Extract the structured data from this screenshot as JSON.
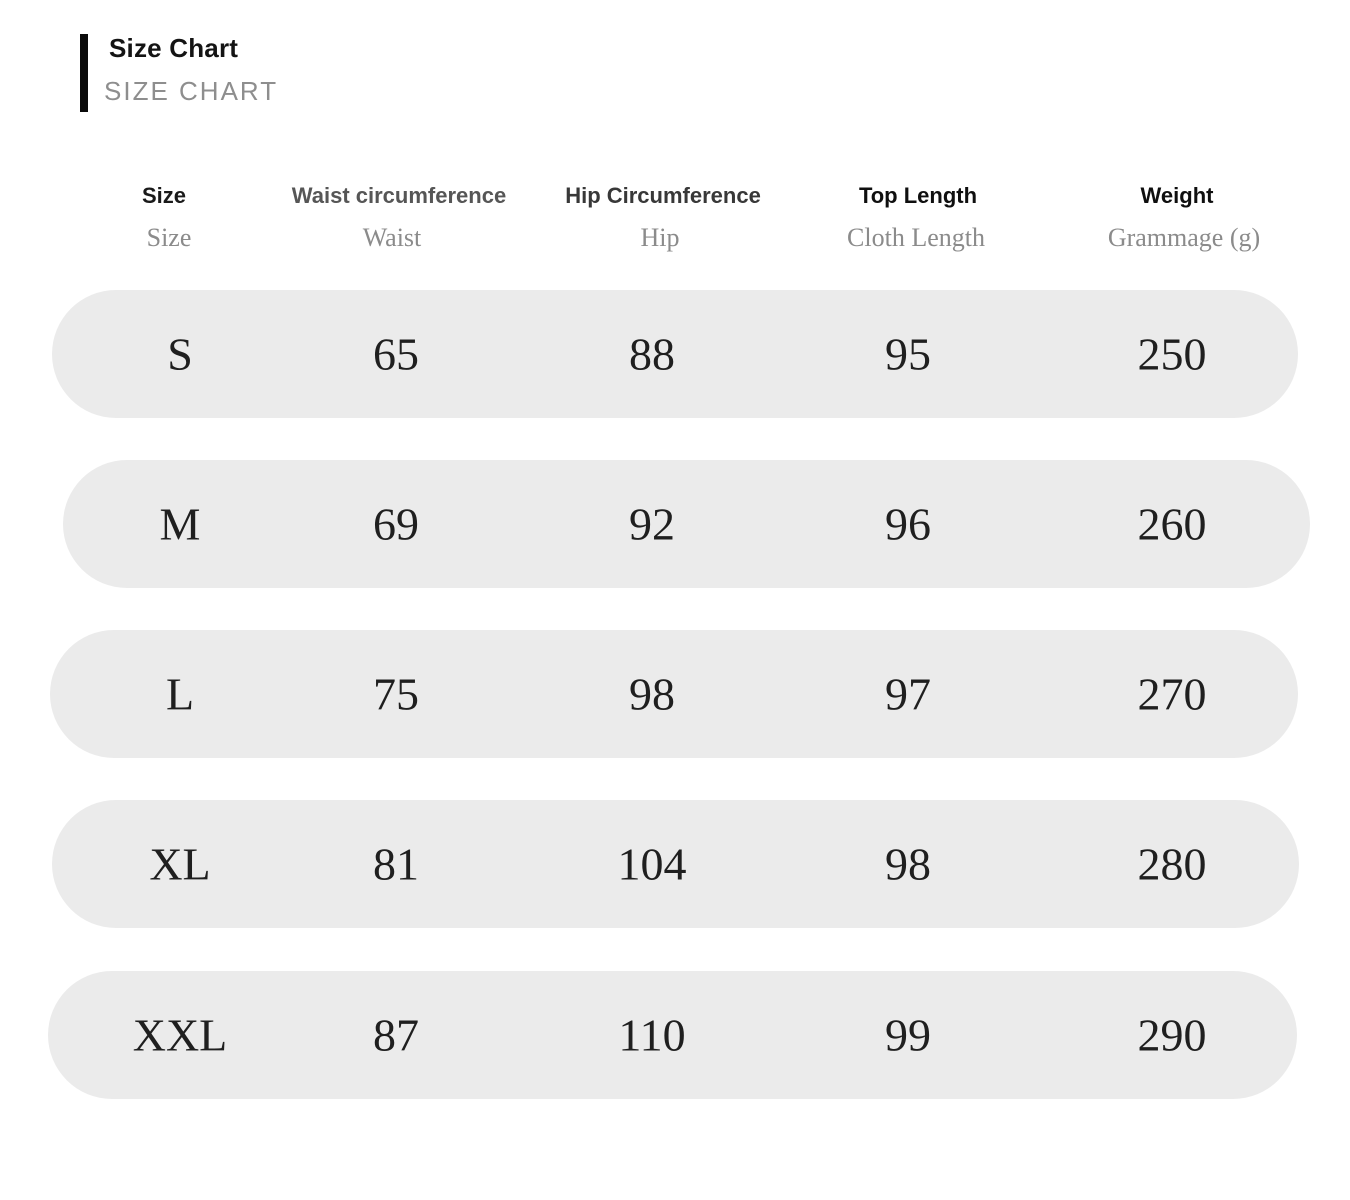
{
  "title": {
    "main": "Size Chart",
    "sub": "SIZE CHART"
  },
  "table": {
    "columns": [
      {
        "label": "Size",
        "sublabel": "Size"
      },
      {
        "label": "Waist circumference",
        "sublabel": "Waist"
      },
      {
        "label": "Hip Circumference",
        "sublabel": "Hip"
      },
      {
        "label": "Top Length",
        "sublabel": "Cloth Length"
      },
      {
        "label": "Weight",
        "sublabel": "Grammage (g)"
      }
    ],
    "rows": [
      {
        "size": "S",
        "waist": "65",
        "hip": "88",
        "length": "95",
        "weight": "250"
      },
      {
        "size": "M",
        "waist": "69",
        "hip": "92",
        "length": "96",
        "weight": "260"
      },
      {
        "size": "L",
        "waist": "75",
        "hip": "98",
        "length": "97",
        "weight": "270"
      },
      {
        "size": "XL",
        "waist": "81",
        "hip": "104",
        "length": "98",
        "weight": "280"
      },
      {
        "size": "XXL",
        "waist": "87",
        "hip": "110",
        "length": "99",
        "weight": "290"
      }
    ]
  },
  "colors": {
    "row_pill": "#ebebeb",
    "accent_bar": "#0a0a0a",
    "muted_text": "#8b8b8b"
  },
  "chart_data": {
    "type": "table",
    "title": "Size Chart",
    "columns": [
      "Size",
      "Waist circumference (Waist)",
      "Hip Circumference (Hip)",
      "Top Length (Cloth Length)",
      "Weight / Grammage (g)"
    ],
    "rows": [
      [
        "S",
        65,
        88,
        95,
        250
      ],
      [
        "M",
        69,
        92,
        96,
        260
      ],
      [
        "L",
        75,
        98,
        97,
        270
      ],
      [
        "XL",
        81,
        104,
        98,
        280
      ],
      [
        "XXL",
        87,
        110,
        99,
        290
      ]
    ]
  }
}
